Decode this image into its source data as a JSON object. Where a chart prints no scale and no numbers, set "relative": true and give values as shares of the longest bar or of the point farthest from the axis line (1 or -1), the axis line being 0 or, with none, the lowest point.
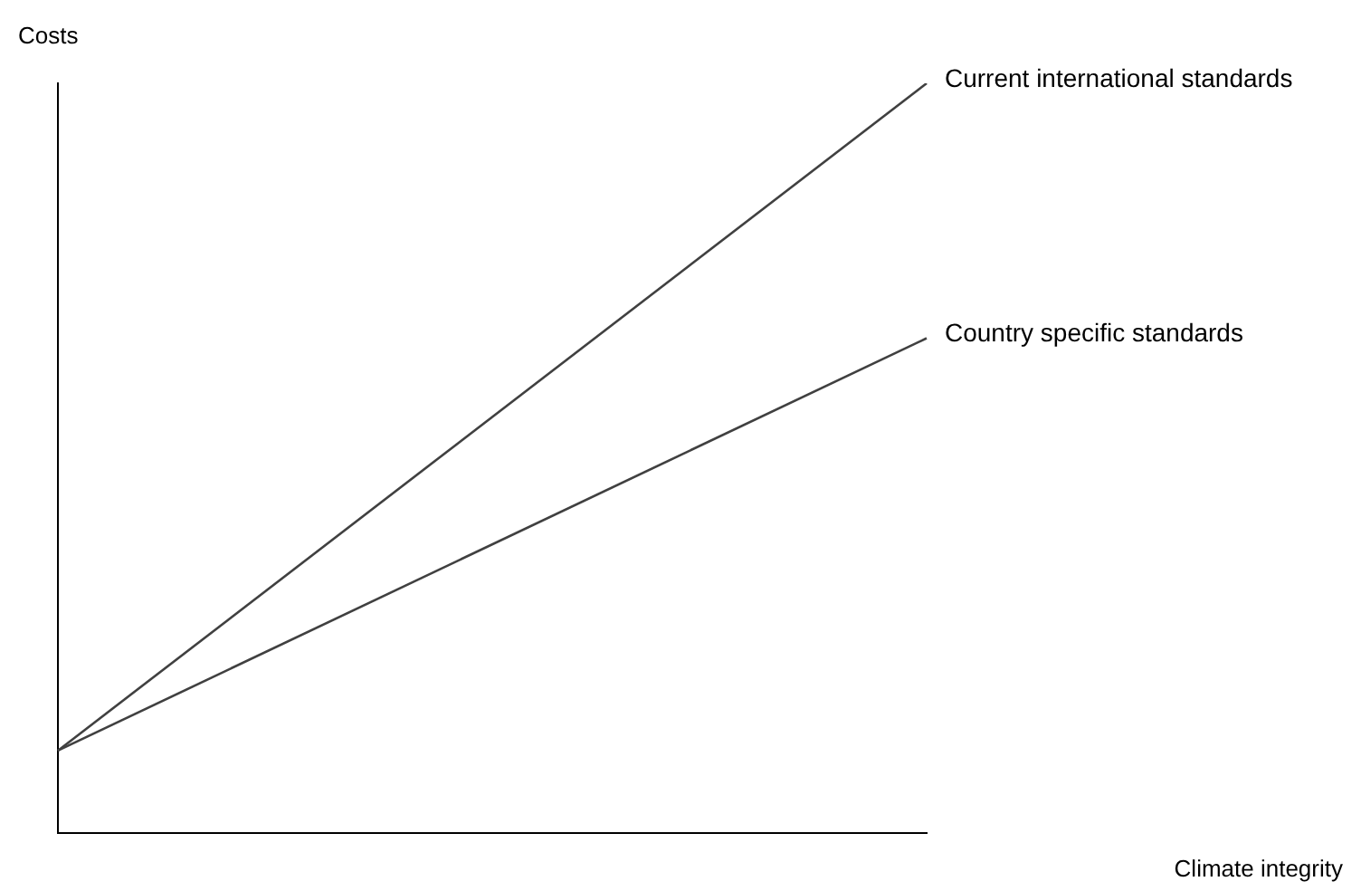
{
  "chart_data": {
    "type": "line",
    "relative": true,
    "xlabel": "Climate integrity",
    "ylabel": "Costs",
    "categories": [
      null,
      null
    ],
    "legend": false,
    "grid": false,
    "marker": "none",
    "series": [
      {
        "name": "Current international standards",
        "color": "#404040",
        "values": [
          0.11,
          1
        ]
      },
      {
        "name": "Country specific standards",
        "color": "#404040",
        "values": [
          0.11,
          0.66
        ]
      }
    ]
  }
}
